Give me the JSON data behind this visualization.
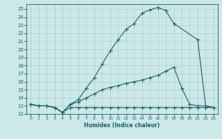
{
  "xlabel": "Humidex (Indice chaleur)",
  "xlim_min": -0.5,
  "xlim_max": 23.5,
  "ylim_min": 12,
  "ylim_max": 25.6,
  "bg_color": "#cce8e8",
  "line_color": "#1a6060",
  "grid_color": "#aacccc",
  "curve1_x": [
    0,
    1,
    2,
    3,
    4,
    5,
    6,
    7,
    8,
    9,
    10,
    11,
    12,
    13,
    14,
    15,
    16,
    17,
    18,
    21,
    22,
    23
  ],
  "curve1_y": [
    13.2,
    13.0,
    13.0,
    12.8,
    12.2,
    13.2,
    13.8,
    15.2,
    16.5,
    18.2,
    19.8,
    21.2,
    22.5,
    23.2,
    24.5,
    24.9,
    25.2,
    24.8,
    23.2,
    21.2,
    13.0,
    12.8
  ],
  "curve2_x": [
    0,
    1,
    2,
    3,
    4,
    5,
    6,
    7,
    8,
    9,
    10,
    11,
    12,
    13,
    14,
    15,
    16,
    17,
    18,
    19,
    20,
    21,
    22,
    23
  ],
  "curve2_y": [
    13.2,
    13.0,
    13.0,
    12.8,
    12.2,
    13.2,
    13.5,
    14.0,
    14.5,
    15.0,
    15.3,
    15.5,
    15.8,
    16.0,
    16.2,
    16.5,
    16.8,
    17.3,
    17.8,
    15.2,
    13.2,
    13.0,
    13.0,
    12.8
  ],
  "curve3_x": [
    0,
    1,
    2,
    3,
    4,
    5,
    6,
    7,
    8,
    9,
    10,
    11,
    12,
    13,
    14,
    15,
    16,
    17,
    18,
    19,
    20,
    21,
    22,
    23
  ],
  "curve3_y": [
    13.2,
    13.0,
    13.0,
    12.8,
    12.2,
    12.8,
    12.8,
    12.8,
    12.8,
    12.8,
    12.8,
    12.8,
    12.8,
    12.8,
    12.8,
    12.8,
    12.8,
    12.8,
    12.8,
    12.8,
    12.8,
    12.8,
    12.8,
    12.8
  ],
  "xticks": [
    0,
    1,
    2,
    3,
    4,
    5,
    6,
    7,
    8,
    9,
    10,
    11,
    12,
    13,
    14,
    15,
    16,
    17,
    18,
    19,
    20,
    21,
    22,
    23
  ],
  "yticks": [
    12,
    13,
    14,
    15,
    16,
    17,
    18,
    19,
    20,
    21,
    22,
    23,
    24,
    25
  ]
}
